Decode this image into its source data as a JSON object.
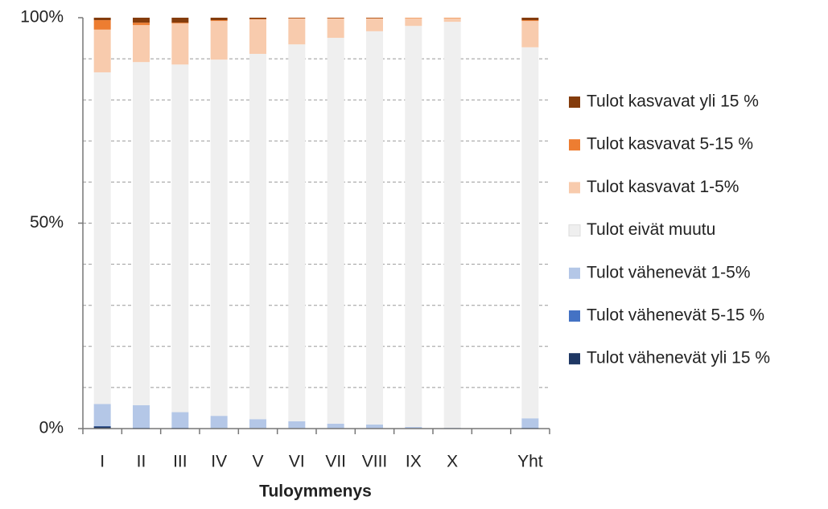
{
  "chart_data": {
    "type": "stacked_bar_100",
    "x_label": "Tuloymmenys",
    "categories": [
      "I",
      "II",
      "III",
      "IV",
      "V",
      "VI",
      "VII",
      "VIII",
      "IX",
      "X",
      null,
      "Yht"
    ],
    "series": [
      {
        "name": "Tulot vähenevät yli 15 %",
        "color": "#1f3864",
        "values": [
          0.5,
          0.1,
          0.1,
          0,
          0,
          0,
          0,
          0,
          0,
          0,
          null,
          0.1
        ]
      },
      {
        "name": "Tulot vähenevät 5-15 %",
        "color": "#4472c4",
        "values": [
          0.1,
          0.1,
          0.1,
          0.1,
          0,
          0,
          0,
          0,
          0,
          0,
          null,
          0.1
        ]
      },
      {
        "name": "Tulot vähenevät 1-5%",
        "color": "#b4c7e7",
        "values": [
          5.4,
          5.5,
          3.8,
          3.0,
          2.3,
          1.8,
          1.2,
          1.0,
          0.4,
          0.2,
          null,
          2.3
        ]
      },
      {
        "name": "Tulot eivät muutu",
        "color": "#efefef",
        "values": [
          80.7,
          83.5,
          84.6,
          86.7,
          88.9,
          91.7,
          93.9,
          95.7,
          97.6,
          98.8,
          null,
          90.3
        ]
      },
      {
        "name": "Tulot kasvavat 1-5%",
        "color": "#f8cbad",
        "values": [
          10.4,
          9.0,
          10.0,
          9.4,
          8.4,
          6.3,
          4.7,
          3.1,
          1.9,
          0.9,
          null,
          6.4
        ]
      },
      {
        "name": "Tulot kasvavat 5-15 %",
        "color": "#ed7d31",
        "values": [
          2.3,
          0.6,
          0.2,
          0.2,
          0.1,
          0.1,
          0.1,
          0.1,
          0.1,
          0.1,
          null,
          0.2
        ]
      },
      {
        "name": "Tulot kasvavat yli 15 %",
        "color": "#843c0c",
        "values": [
          0.6,
          1.2,
          1.2,
          0.6,
          0.3,
          0.1,
          0.1,
          0.1,
          0,
          0,
          null,
          0.6
        ]
      }
    ],
    "ylim": [
      0,
      100
    ],
    "yticks": [
      {
        "value": 0,
        "label": "0%"
      },
      {
        "value": 50,
        "label": "50%"
      },
      {
        "value": 100,
        "label": "100%"
      }
    ],
    "grid_lines": [
      10,
      20,
      30,
      40,
      50,
      60,
      70,
      80,
      90
    ],
    "legend": "right"
  }
}
